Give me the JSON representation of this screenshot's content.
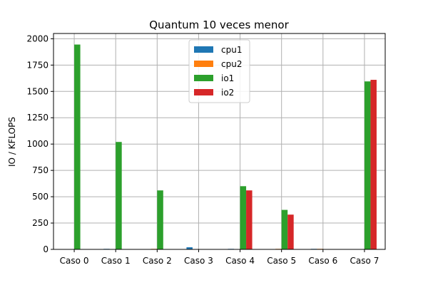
{
  "chart_data": {
    "type": "bar",
    "title": "Quantum 10 veces menor",
    "xlabel": "",
    "ylabel": "IO / KFLOPS",
    "categories": [
      "Caso 0",
      "Caso 1",
      "Caso 2",
      "Caso 3",
      "Caso 4",
      "Caso 5",
      "Caso 6",
      "Caso 7"
    ],
    "ylim": [
      0,
      2050
    ],
    "yticks": [
      0,
      250,
      500,
      750,
      1000,
      1250,
      1500,
      1750,
      2000
    ],
    "yticks_label": [
      "0",
      "250",
      "500",
      "750",
      "1000",
      "1250",
      "1500",
      "1750",
      "2000"
    ],
    "grid": true,
    "legend_position": "top-center",
    "series": [
      {
        "name": "cpu1",
        "color": "#1f77b4",
        "values": [
          0,
          5,
          0,
          20,
          5,
          0,
          5,
          0
        ]
      },
      {
        "name": "cpu2",
        "color": "#ff7f0e",
        "values": [
          0,
          0,
          5,
          0,
          0,
          5,
          5,
          0
        ]
      },
      {
        "name": "io1",
        "color": "#2ca02c",
        "values": [
          1945,
          1020,
          560,
          0,
          600,
          375,
          0,
          1595
        ]
      },
      {
        "name": "io2",
        "color": "#d62728",
        "values": [
          0,
          0,
          0,
          0,
          560,
          330,
          0,
          1610
        ]
      }
    ]
  }
}
